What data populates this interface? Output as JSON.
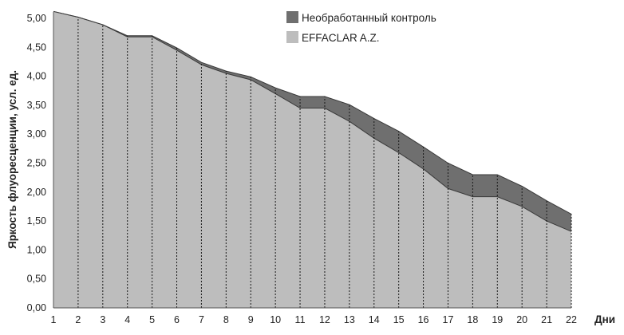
{
  "chart_data": {
    "type": "area",
    "xlabel": "Дни",
    "ylabel": "Яркость флуоресценции, усл. ед.",
    "x": [
      1,
      2,
      3,
      4,
      5,
      6,
      7,
      8,
      9,
      10,
      11,
      12,
      13,
      14,
      15,
      16,
      17,
      18,
      19,
      20,
      21,
      22
    ],
    "ylim": [
      0,
      5
    ],
    "y_ticks": [
      "0,00",
      "0,50",
      "1,00",
      "1,50",
      "2,00",
      "2,50",
      "3,00",
      "3,50",
      "4,00",
      "4,50",
      "5,00"
    ],
    "x_ticks": [
      "1",
      "2",
      "3",
      "4",
      "5",
      "6",
      "7",
      "8",
      "9",
      "10",
      "11",
      "12",
      "13",
      "14",
      "15",
      "16",
      "17",
      "18",
      "19",
      "20",
      "21",
      "22"
    ],
    "series": [
      {
        "name": "Необработанный контроль",
        "color": "#6f6f6f",
        "values": [
          5.12,
          5.02,
          4.89,
          4.7,
          4.7,
          4.49,
          4.24,
          4.09,
          3.99,
          3.8,
          3.65,
          3.65,
          3.51,
          3.27,
          3.05,
          2.78,
          2.5,
          2.3,
          2.3,
          2.1,
          1.85,
          1.62
        ]
      },
      {
        "name": "EFFACLAR A.Z.",
        "color": "#bdbdbd",
        "values": [
          5.12,
          5.02,
          4.89,
          4.68,
          4.68,
          4.45,
          4.2,
          4.05,
          3.94,
          3.7,
          3.45,
          3.45,
          3.22,
          2.93,
          2.68,
          2.4,
          2.06,
          1.92,
          1.92,
          1.75,
          1.5,
          1.32
        ]
      }
    ],
    "grid": "vertical-dotted",
    "legend_position": "top-right"
  }
}
